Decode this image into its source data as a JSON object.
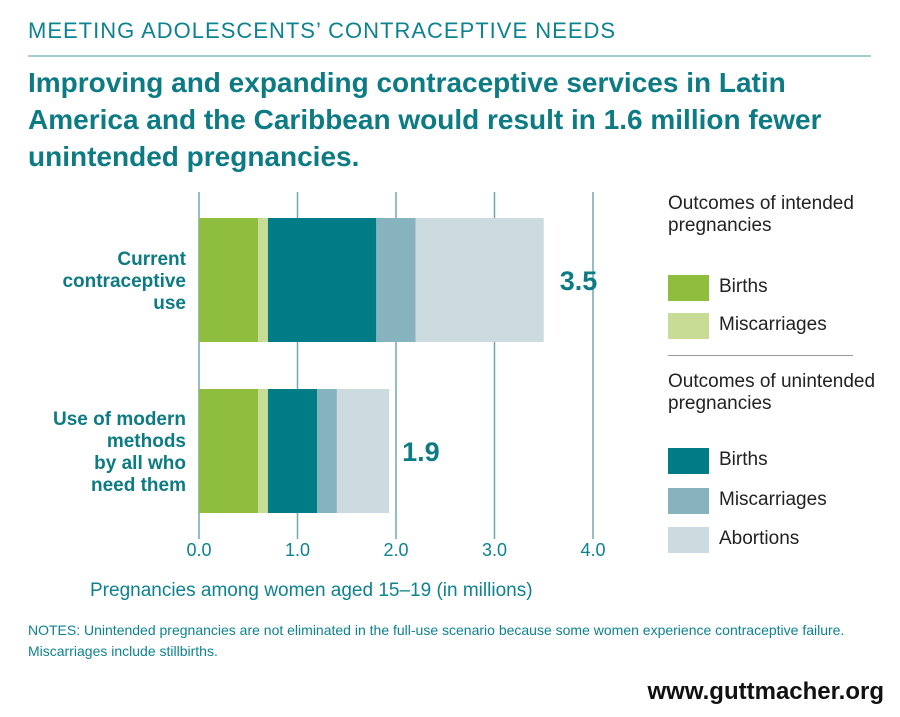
{
  "header": {
    "kicker": "MEETING ADOLESCENTS’ CONTRACEPTIVE NEEDS",
    "headline": "Improving and expanding contraceptive services in Latin America and the Caribbean would result in 1.6 million fewer unintended pregnancies."
  },
  "legend": {
    "group_intended": "Outcomes of intended pregnancies",
    "group_unintended": "Outcomes of unintended pregnancies",
    "intended_items": [
      {
        "label": "Births",
        "color": "#8fbd3e"
      },
      {
        "label": "Miscarriages",
        "color": "#c8dc96"
      }
    ],
    "unintended_items": [
      {
        "label": "Births",
        "color": "#007c87"
      },
      {
        "label": "Miscarriages",
        "color": "#86b3bd"
      },
      {
        "label": "Abortions",
        "color": "#ccdbe0"
      }
    ]
  },
  "chart_data": {
    "type": "bar",
    "orientation": "horizontal",
    "stacked": true,
    "categories": [
      "Current contraceptive use",
      "Use of modern methods by all who need them"
    ],
    "category_lines": [
      [
        "Current",
        "contraceptive",
        "use"
      ],
      [
        "Use of modern",
        "methods",
        "by all who",
        "need them"
      ]
    ],
    "series": [
      {
        "name": "Intended pregnancies: Births",
        "color": "#8fbd3e",
        "values": [
          0.6,
          0.6
        ]
      },
      {
        "name": "Intended pregnancies: Miscarriages",
        "color": "#c8dc96",
        "values": [
          0.1,
          0.1
        ]
      },
      {
        "name": "Unintended pregnancies: Births",
        "color": "#007c87",
        "values": [
          1.1,
          0.5
        ]
      },
      {
        "name": "Unintended pregnancies: Miscarriages",
        "color": "#86b3bd",
        "values": [
          0.4,
          0.2
        ]
      },
      {
        "name": "Unintended pregnancies: Abortions",
        "color": "#ccdbe0",
        "values": [
          1.3,
          0.53
        ]
      }
    ],
    "totals": [
      3.5,
      1.9
    ],
    "total_labels": [
      "3.5",
      "1.9"
    ],
    "xlabel": "Pregnancies among women aged 15–19 (in millions)",
    "xlim": [
      0,
      4
    ],
    "xticks": [
      0,
      1,
      2,
      3,
      4
    ],
    "xtick_labels": [
      "0.0",
      "1.0",
      "2.0",
      "3.0",
      "4.0"
    ],
    "grid": true,
    "colors": {
      "category_label": "#0d7b84",
      "tick_label": "#0d8390",
      "gridline": "#6fa9b0"
    }
  },
  "notes": "NOTES: Unintended pregnancies are not eliminated in the full-use scenario because some women experience contraceptive failure. Miscarriages include stillbirths.",
  "footer": {
    "url": "www.guttmacher.org"
  }
}
